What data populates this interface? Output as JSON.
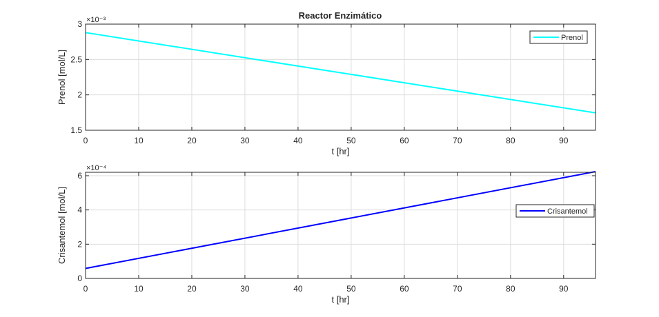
{
  "figure_title": "Reactor Enzimático",
  "chart_data": [
    {
      "type": "line",
      "title": "Reactor Enzimático",
      "xlabel": "t [hr]",
      "ylabel": "Prenol [mol/L]",
      "xlim": [
        0,
        96
      ],
      "ylim": [
        0.0015,
        0.003
      ],
      "exponent_label": "×10⁻³",
      "exponent_scale": 0.001,
      "xticks": [
        0,
        10,
        20,
        30,
        40,
        50,
        60,
        70,
        80,
        90
      ],
      "yticks": [
        0.0015,
        0.002,
        0.0025,
        0.003
      ],
      "ytick_labels": [
        "1.5",
        "2",
        "2.5",
        "3"
      ],
      "grid": true,
      "legend_position": "top-right",
      "series": [
        {
          "name": "Prenol",
          "color": "#00ffff",
          "x": [
            0,
            96
          ],
          "y": [
            0.00288,
            0.001746
          ]
        }
      ]
    },
    {
      "type": "line",
      "title": "",
      "xlabel": "t [hr]",
      "ylabel": "Crisantemol [mol/L]",
      "xlim": [
        0,
        96
      ],
      "ylim": [
        0,
        0.00062
      ],
      "exponent_label": "×10⁻⁴",
      "exponent_scale": 0.0001,
      "xticks": [
        0,
        10,
        20,
        30,
        40,
        50,
        60,
        70,
        80,
        90
      ],
      "yticks": [
        0,
        0.0002,
        0.0004,
        0.0006
      ],
      "ytick_labels": [
        "0",
        "2",
        "4",
        "6"
      ],
      "grid": true,
      "legend_position": "right",
      "series": [
        {
          "name": "Crisantemol",
          "color": "#0000ff",
          "x": [
            0,
            96
          ],
          "y": [
            5.83e-05,
            0.000624
          ]
        }
      ]
    }
  ]
}
